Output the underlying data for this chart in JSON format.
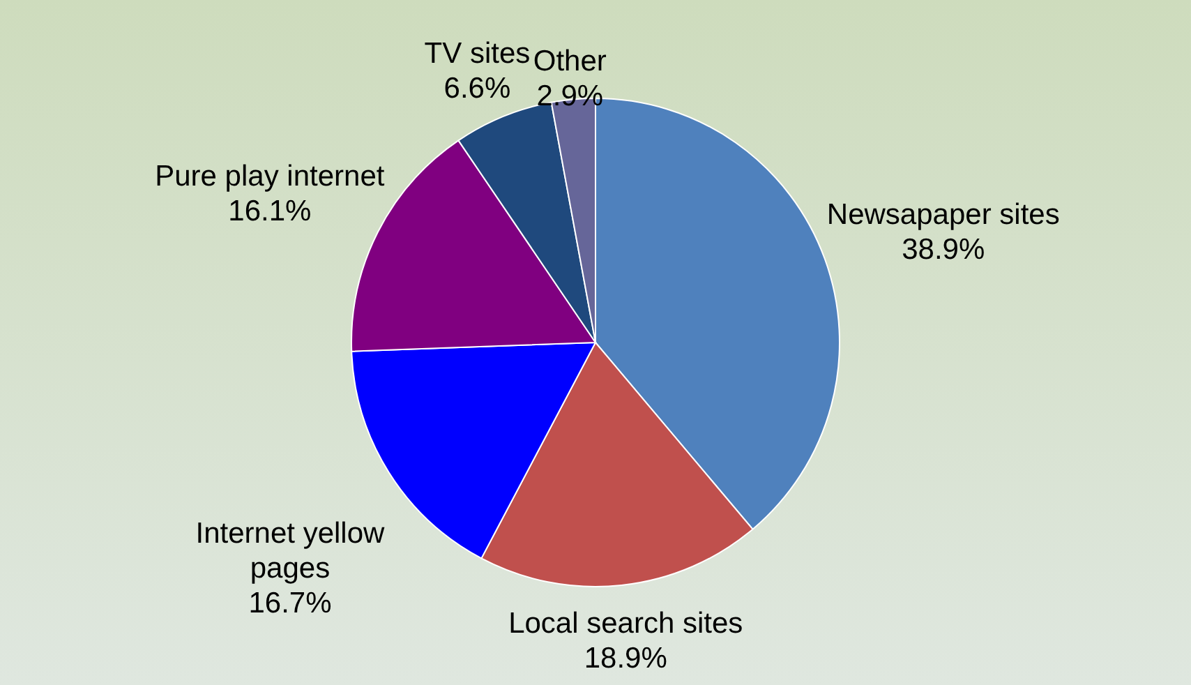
{
  "chart_data": {
    "type": "pie",
    "categories": [
      "Newsapaper sites",
      "Local search sites",
      "Internet yellow pages",
      "Pure play internet",
      "TV sites",
      "Other"
    ],
    "values": [
      38.9,
      18.9,
      16.7,
      16.1,
      6.6,
      2.9
    ],
    "colors": [
      "#4f81bd",
      "#c0504d",
      "#0000ff",
      "#800080",
      "#1f497d",
      "#666699"
    ],
    "value_labels": [
      "38.9%",
      "18.9%",
      "16.7%",
      "16.1%",
      "6.6%",
      "2.9%"
    ]
  }
}
